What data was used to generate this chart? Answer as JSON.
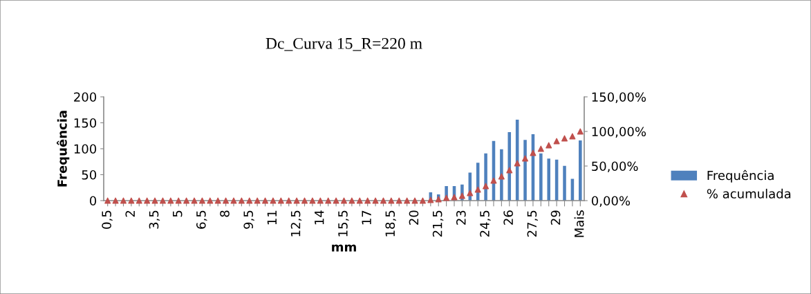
{
  "chart_data": {
    "type": "bar",
    "title": "Dc_Curva 15_R=220 m",
    "xlabel": "mm",
    "ylabel": "Frequência",
    "categories": [
      "0,5",
      null,
      null,
      "2",
      null,
      null,
      "3,5",
      null,
      null,
      "5",
      null,
      null,
      "6,5",
      null,
      null,
      "8",
      null,
      null,
      "9,5",
      null,
      null,
      "11",
      null,
      null,
      "12,5",
      null,
      null,
      "14",
      null,
      null,
      "15,5",
      null,
      null,
      "17",
      null,
      null,
      "18,5",
      null,
      null,
      "20",
      null,
      null,
      "21,5",
      null,
      null,
      "23",
      null,
      null,
      "24,5",
      null,
      null,
      "26",
      null,
      null,
      "27,5",
      null,
      null,
      "29",
      null,
      null,
      "Mais"
    ],
    "series": [
      {
        "name": "Frequência",
        "color": "#4f81bd",
        "values": [
          0,
          0,
          0,
          0,
          0,
          0,
          0,
          0,
          0,
          0,
          0,
          0,
          0,
          0,
          0,
          0,
          0,
          0,
          0,
          0,
          0,
          0,
          0,
          0,
          0,
          0,
          0,
          0,
          0,
          0,
          0,
          0,
          0,
          0,
          0,
          0,
          0,
          0,
          0,
          0,
          0,
          16,
          12,
          28,
          28,
          31,
          54,
          73,
          91,
          115,
          99,
          132,
          156,
          117,
          128,
          91,
          81,
          79,
          67,
          42,
          116
        ]
      },
      {
        "name": "% acumulada",
        "type": "scatter",
        "axis": "y2",
        "color": "#c0504d",
        "marker": "triangle",
        "values": [
          0,
          0,
          0,
          0,
          0,
          0,
          0,
          0,
          0,
          0,
          0,
          0,
          0,
          0,
          0,
          0,
          0,
          0,
          0,
          0,
          0,
          0,
          0,
          0,
          0,
          0,
          0,
          0,
          0,
          0,
          0,
          0,
          0,
          0,
          0,
          0,
          0,
          0,
          0,
          0,
          0,
          1,
          2,
          4,
          5,
          7,
          11,
          16,
          21,
          29,
          35,
          44,
          54,
          61,
          69,
          75,
          80,
          86,
          90,
          93,
          100
        ]
      }
    ],
    "ylim": [
      0,
      200
    ],
    "yticks": [
      0,
      50,
      100,
      150,
      200
    ],
    "y2lim": [
      0,
      150
    ],
    "y2ticks": [
      {
        "value": 0,
        "label": "0,00%"
      },
      {
        "value": 50,
        "label": "50,00%"
      },
      {
        "value": 100,
        "label": "100,00%"
      },
      {
        "value": 150,
        "label": "150,00%"
      }
    ],
    "grid": false,
    "legend": "right"
  }
}
